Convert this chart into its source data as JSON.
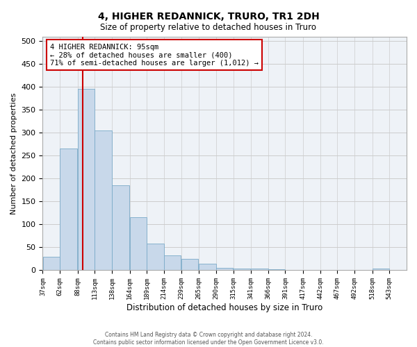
{
  "title": "4, HIGHER REDANNICK, TRURO, TR1 2DH",
  "subtitle": "Size of property relative to detached houses in Truro",
  "xlabel": "Distribution of detached houses by size in Truro",
  "ylabel": "Number of detached properties",
  "bar_color": "#c8d8ea",
  "bar_edge_color": "#7aaac8",
  "grid_color": "#cccccc",
  "background_color": "#eef2f7",
  "vline_x": 95,
  "vline_color": "#cc0000",
  "annotation_text": "4 HIGHER REDANNICK: 95sqm\n← 28% of detached houses are smaller (400)\n71% of semi-detached houses are larger (1,012) →",
  "annotation_box_color": "#cc0000",
  "bin_starts": [
    37,
    62,
    88,
    113,
    138,
    164,
    189,
    214,
    239,
    265,
    290,
    315,
    341,
    366,
    391,
    417,
    442,
    467,
    492,
    518
  ],
  "bin_width": 25,
  "bar_heights": [
    30,
    265,
    395,
    305,
    185,
    115,
    58,
    33,
    25,
    14,
    6,
    4,
    3,
    2,
    1,
    1,
    1,
    1,
    0,
    4
  ],
  "tick_labels": [
    "37sqm",
    "62sqm",
    "88sqm",
    "113sqm",
    "138sqm",
    "164sqm",
    "189sqm",
    "214sqm",
    "239sqm",
    "265sqm",
    "290sqm",
    "315sqm",
    "341sqm",
    "366sqm",
    "391sqm",
    "417sqm",
    "442sqm",
    "467sqm",
    "492sqm",
    "518sqm",
    "543sqm"
  ],
  "ylim": [
    0,
    510
  ],
  "yticks": [
    0,
    50,
    100,
    150,
    200,
    250,
    300,
    350,
    400,
    450,
    500
  ],
  "footer_line1": "Contains HM Land Registry data © Crown copyright and database right 2024.",
  "footer_line2": "Contains public sector information licensed under the Open Government Licence v3.0.",
  "fig_width": 6.0,
  "fig_height": 5.0,
  "dpi": 100
}
